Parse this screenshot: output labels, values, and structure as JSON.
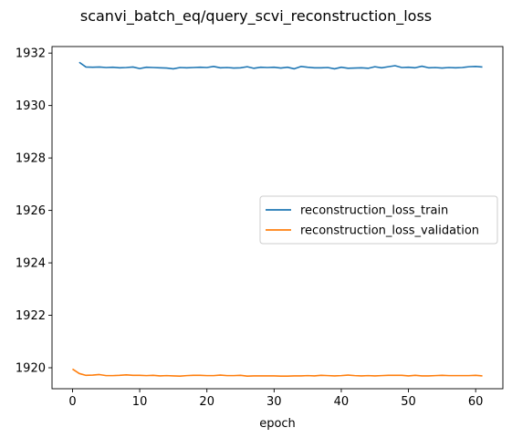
{
  "figure": {
    "title": "scanvi_batch_eq/query_scvi_reconstruction_loss"
  },
  "chart_data": {
    "type": "line",
    "title": "scanvi_batch_eq/query_scvi_reconstruction_loss",
    "xlabel": "epoch",
    "ylabel": "",
    "xlim": [
      -3.05,
      64.05
    ],
    "ylim": [
      1919.2,
      1932.25
    ],
    "xticks": [
      0,
      10,
      20,
      30,
      40,
      50,
      60
    ],
    "yticks": [
      1920,
      1922,
      1924,
      1926,
      1928,
      1930,
      1932
    ],
    "grid": false,
    "legend": {
      "location": "center-right"
    },
    "series": [
      {
        "name": "reconstruction_loss_train",
        "color": "#1f77b4",
        "x": [
          1,
          2,
          3,
          4,
          5,
          6,
          7,
          8,
          9,
          10,
          11,
          12,
          13,
          14,
          15,
          16,
          17,
          18,
          19,
          20,
          21,
          22,
          23,
          24,
          25,
          26,
          27,
          28,
          29,
          30,
          31,
          32,
          33,
          34,
          35,
          36,
          37,
          38,
          39,
          40,
          41,
          42,
          43,
          44,
          45,
          46,
          47,
          48,
          49,
          50,
          51,
          52,
          53,
          54,
          55,
          56,
          57,
          58,
          59,
          60,
          61
        ],
        "values": [
          1931.65,
          1931.47,
          1931.46,
          1931.47,
          1931.45,
          1931.46,
          1931.44,
          1931.45,
          1931.47,
          1931.41,
          1931.46,
          1931.45,
          1931.44,
          1931.43,
          1931.4,
          1931.45,
          1931.44,
          1931.45,
          1931.46,
          1931.45,
          1931.49,
          1931.44,
          1931.45,
          1931.43,
          1931.44,
          1931.48,
          1931.42,
          1931.46,
          1931.45,
          1931.46,
          1931.43,
          1931.46,
          1931.4,
          1931.49,
          1931.46,
          1931.44,
          1931.44,
          1931.45,
          1931.4,
          1931.46,
          1931.42,
          1931.43,
          1931.44,
          1931.42,
          1931.48,
          1931.44,
          1931.48,
          1931.52,
          1931.45,
          1931.46,
          1931.44,
          1931.5,
          1931.44,
          1931.45,
          1931.43,
          1931.45,
          1931.44,
          1931.45,
          1931.48,
          1931.49,
          1931.47
        ]
      },
      {
        "name": "reconstruction_loss_validation",
        "color": "#ff7f0e",
        "x": [
          0,
          1,
          2,
          3,
          4,
          5,
          6,
          7,
          8,
          9,
          10,
          11,
          12,
          13,
          14,
          15,
          16,
          17,
          18,
          19,
          20,
          21,
          22,
          23,
          24,
          25,
          26,
          27,
          28,
          29,
          30,
          31,
          32,
          33,
          34,
          35,
          36,
          37,
          38,
          39,
          40,
          41,
          42,
          43,
          44,
          45,
          46,
          47,
          48,
          49,
          50,
          51,
          52,
          53,
          54,
          55,
          56,
          57,
          58,
          59,
          60,
          61
        ],
        "values": [
          1919.95,
          1919.78,
          1919.71,
          1919.72,
          1919.74,
          1919.7,
          1919.7,
          1919.71,
          1919.73,
          1919.71,
          1919.71,
          1919.7,
          1919.71,
          1919.69,
          1919.7,
          1919.69,
          1919.68,
          1919.7,
          1919.71,
          1919.71,
          1919.7,
          1919.7,
          1919.72,
          1919.7,
          1919.7,
          1919.71,
          1919.68,
          1919.69,
          1919.69,
          1919.69,
          1919.69,
          1919.68,
          1919.68,
          1919.69,
          1919.69,
          1919.7,
          1919.69,
          1919.71,
          1919.7,
          1919.69,
          1919.7,
          1919.72,
          1919.7,
          1919.69,
          1919.7,
          1919.69,
          1919.7,
          1919.71,
          1919.71,
          1919.71,
          1919.69,
          1919.71,
          1919.69,
          1919.69,
          1919.7,
          1919.71,
          1919.7,
          1919.7,
          1919.7,
          1919.7,
          1919.71,
          1919.69
        ]
      }
    ]
  }
}
